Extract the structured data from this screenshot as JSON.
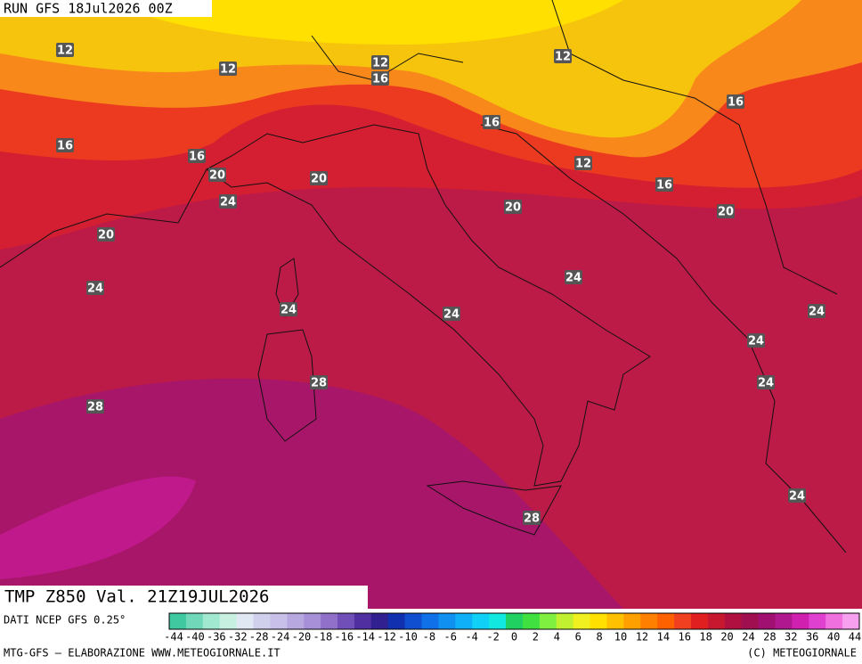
{
  "header": "RUN GFS 18Jul2026 00Z",
  "title": "TMP Z850 Val. 21Z19JUL2026",
  "source": "DATI NCEP GFS 0.25°",
  "footer_left": "MTG-GFS — ELABORAZIONE WWW.METEOGIORNALE.IT",
  "footer_right": "(C) METEOGIORNALE",
  "contour_labels": [
    "12",
    "12",
    "12",
    "16",
    "12",
    "16",
    "16",
    "16",
    "20",
    "16",
    "12",
    "16",
    "20",
    "24",
    "20",
    "20",
    "20",
    "24",
    "24",
    "24",
    "24",
    "24",
    "24",
    "24",
    "28",
    "28",
    "28",
    "24"
  ],
  "colorbar": {
    "ticks": [
      -44,
      -40,
      -36,
      -32,
      -28,
      -24,
      -20,
      -18,
      -16,
      -14,
      -12,
      -10,
      -8,
      -6,
      -4,
      -2,
      0,
      2,
      4,
      6,
      8,
      10,
      12,
      14,
      16,
      18,
      20,
      24,
      28,
      32,
      36,
      40,
      44
    ],
    "colors": [
      "#40c8a0",
      "#70d8b8",
      "#a0e8d0",
      "#c8f0e0",
      "#e0e8f4",
      "#d0d0ec",
      "#c8c0e8",
      "#b8a8e0",
      "#a890d8",
      "#9070c8",
      "#7050b8",
      "#5030a0",
      "#302090",
      "#1030b0",
      "#1050d0",
      "#1070e8",
      "#1090f0",
      "#10b0f8",
      "#10d0f8",
      "#10e8e0",
      "#20d060",
      "#40e040",
      "#80f040",
      "#c0f030",
      "#f0f020",
      "#ffe000",
      "#ffc000",
      "#ffa000",
      "#ff8000",
      "#ff6000",
      "#f04020",
      "#e02020",
      "#c81830",
      "#b01040",
      "#a01050",
      "#a01070",
      "#b01890",
      "#d020b0",
      "#e040d0",
      "#f070e0",
      "#f8a0f0"
    ]
  }
}
